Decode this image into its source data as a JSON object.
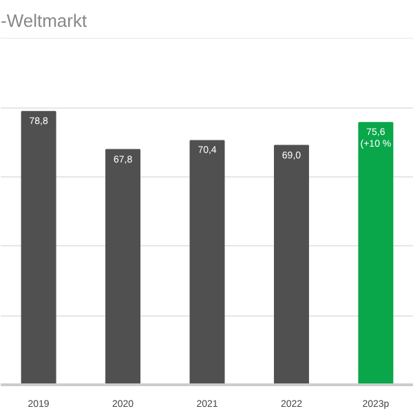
{
  "chart_data": {
    "type": "bar",
    "title": "-Weltmarkt",
    "categories": [
      "2019",
      "2020",
      "2021",
      "2022",
      "2023p"
    ],
    "values": [
      78.8,
      67.8,
      70.4,
      69.0,
      75.6
    ],
    "colors": [
      "#505050",
      "#505050",
      "#505050",
      "#505050",
      "#0aa64a"
    ],
    "value_labels": [
      "78,8",
      "67,8",
      "70,4",
      "69,0",
      "75,6\n(+10 %"
    ],
    "grid": "y",
    "tick_labels": "x"
  }
}
